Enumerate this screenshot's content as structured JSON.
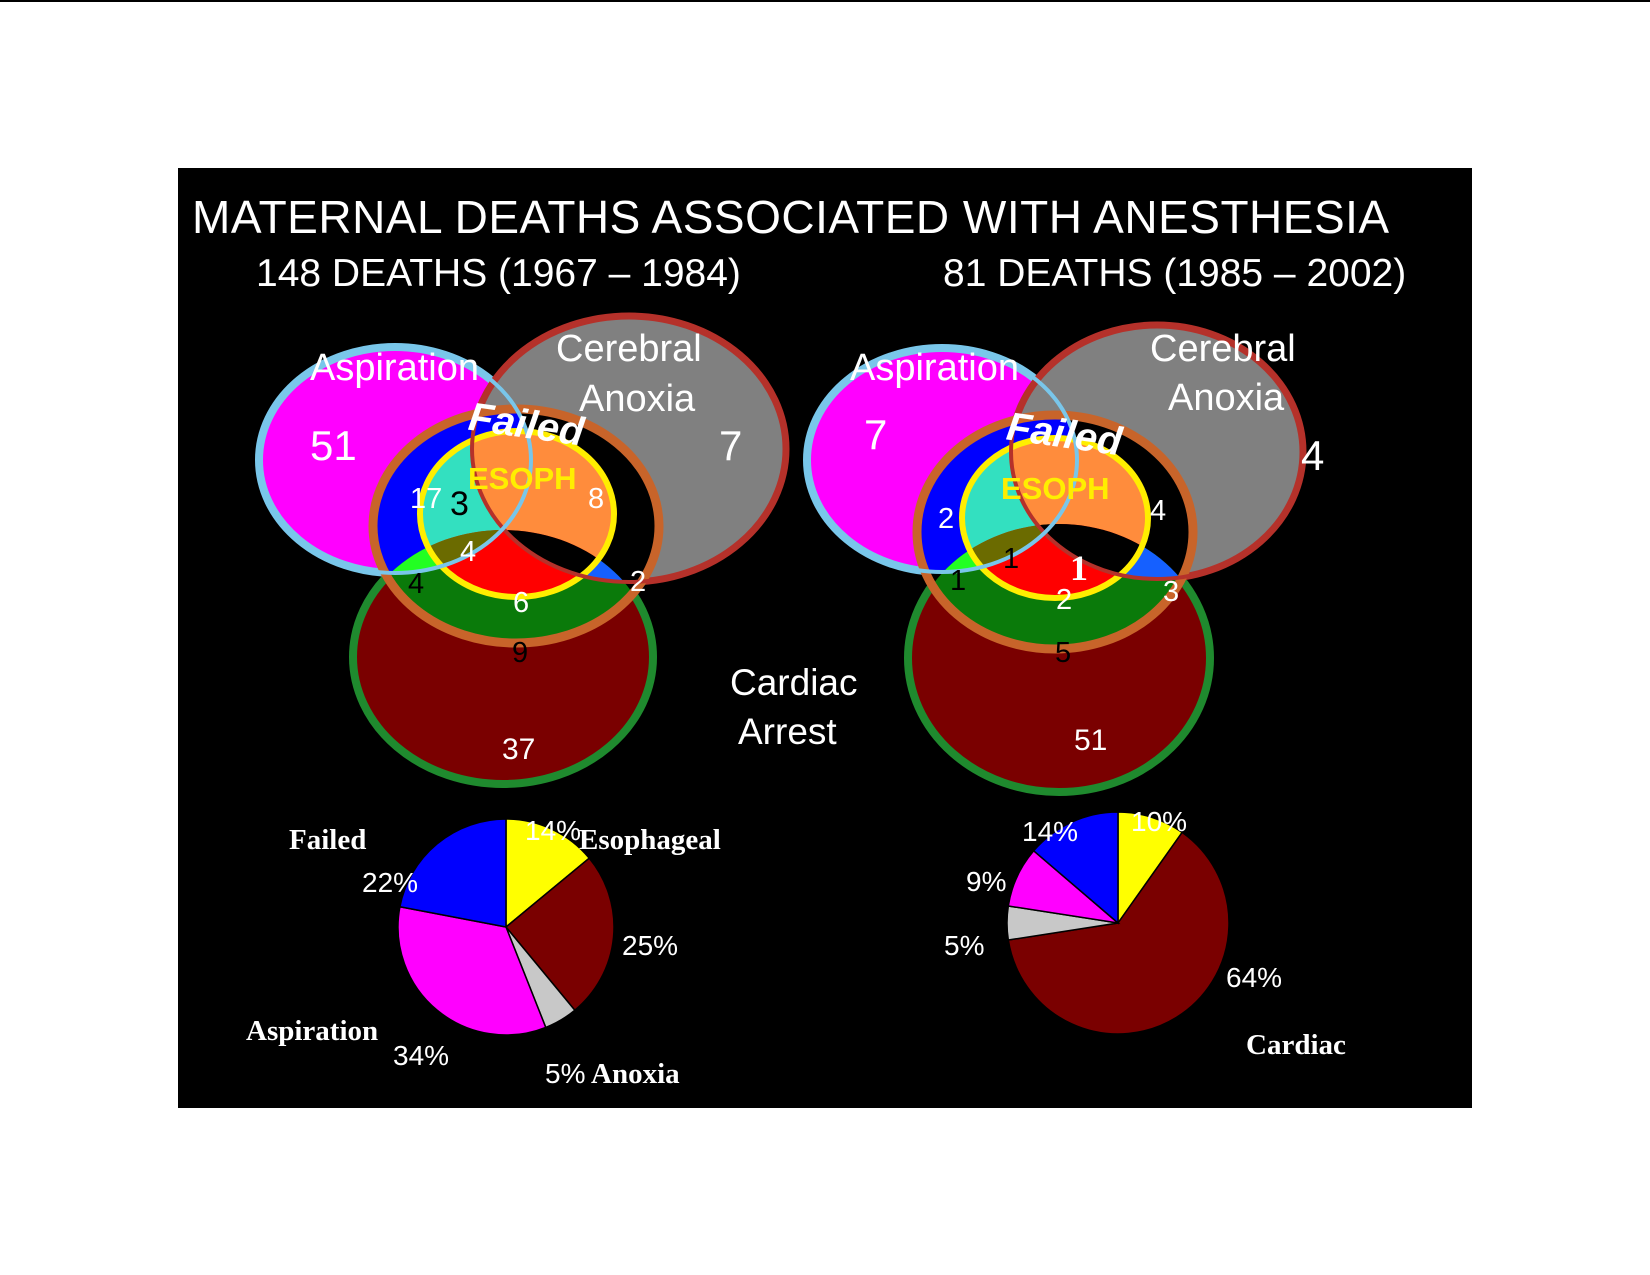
{
  "title": "MATERNAL DEATHS ASSOCIATED WITH ANESTHESIA",
  "colors": {
    "aspiration": "#ff00ff",
    "anoxia": "#808080",
    "cardiac": "#7a0000",
    "failed": "#0000ff",
    "esophageal": "#ffff00",
    "background": "#000000"
  },
  "left": {
    "subtitle": "148 DEATHS (1967 – 1984)",
    "venn": {
      "aspiration_label": "Aspiration",
      "cerebral_label": "Cerebral",
      "anoxia_label": "Anoxia",
      "failed_label": "Failed",
      "esoph_label": "ESOPH",
      "cardiac_label": "Cardiac",
      "arrest_label": "Arrest",
      "aspiration_only": "51",
      "anoxia_only": "7",
      "cardiac_only": "37",
      "failed_aspiration": "17",
      "esoph_aspiration": "3",
      "esoph_anoxia": "8",
      "esoph_aspiration_cardiac": "4",
      "failed_aspiration_cardiac": "4",
      "esoph_cardiac": "6",
      "failed_anoxia_cardiac": "2",
      "failed_cardiac": "9"
    },
    "pie": {
      "labels": {
        "failed": "Failed",
        "esophageal": "Esophageal",
        "aspiration": "Aspiration",
        "anoxia": "Anoxia"
      },
      "pct": {
        "failed": "22%",
        "esophageal": "14%",
        "cardiac": "25%",
        "anoxia": "5%",
        "aspiration": "34%"
      }
    }
  },
  "right": {
    "subtitle": "81 DEATHS (1985 – 2002)",
    "venn": {
      "aspiration_label": "Aspiration",
      "cerebral_label": "Cerebral",
      "anoxia_label": "Anoxia",
      "failed_label": "Failed",
      "esoph_label": "ESOPH",
      "aspiration_only": "7",
      "anoxia_only": "4",
      "cardiac_only": "51",
      "failed_aspiration": "2",
      "esoph_anoxia": "4",
      "esoph_aspiration": "1",
      "failed_aspiration_cardiac": "1",
      "esoph_anoxia_cardiac": "1",
      "esoph_cardiac": "2",
      "failed_anoxia_cardiac": "3",
      "failed_cardiac": "5"
    },
    "pie": {
      "labels": {
        "cardiac": "Cardiac"
      },
      "pct": {
        "failed": "14%",
        "esophageal": "10%",
        "aspiration": "9%",
        "anoxia": "5%",
        "cardiac": "64%"
      }
    }
  },
  "chart_data": [
    {
      "type": "pie",
      "categories": [
        "Esophageal",
        "Cardiac",
        "Anoxia",
        "Aspiration",
        "Failed"
      ],
      "values": [
        14,
        25,
        5,
        34,
        22
      ]
    },
    {
      "type": "pie",
      "categories": [
        "Esophageal",
        "Cardiac",
        "Anoxia",
        "Aspiration",
        "Failed"
      ],
      "values": [
        10,
        64,
        5,
        9,
        14
      ]
    }
  ]
}
